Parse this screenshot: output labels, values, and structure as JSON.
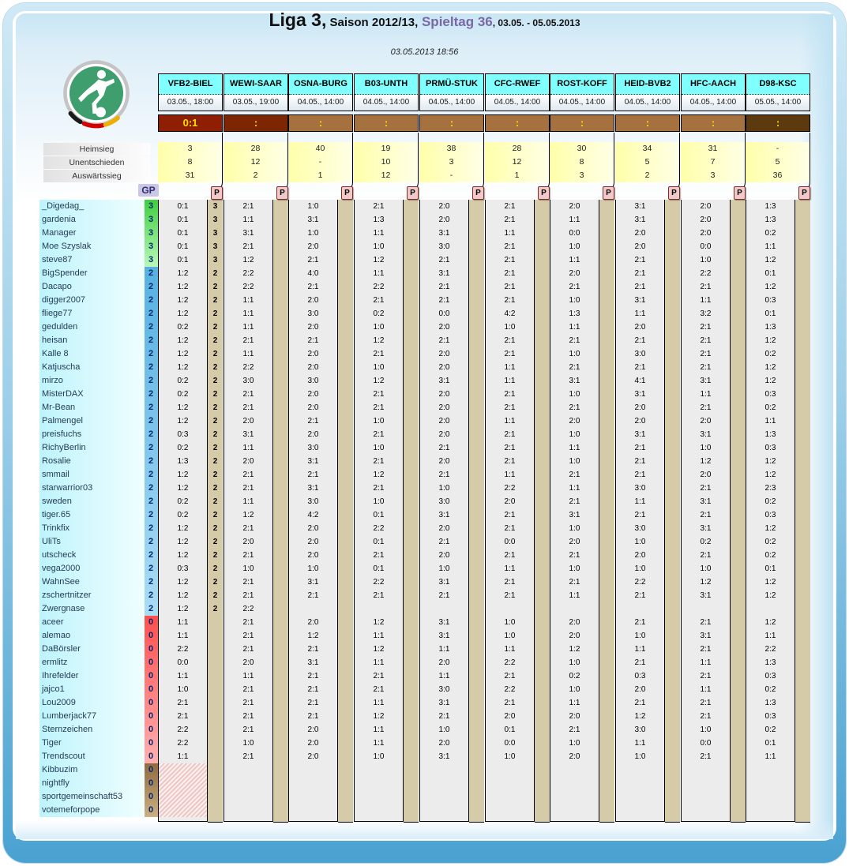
{
  "title": {
    "league": "Liga 3,",
    "season": " Saison 2012/13,",
    "matchday": " Spieltag 36",
    "dates": ", 03.05. - 05.05.2013"
  },
  "timestamp": "03.05.2013 18:56",
  "stats_labels": [
    "Heimsieg",
    "Unentschieden",
    "Auswärtssieg"
  ],
  "gp_label": "GP",
  "p_label": "P",
  "colors": {
    "header_bg": "#80ffff",
    "result_open": "#a5713f",
    "result_played": "#8e1f04",
    "result_imminent": "#7d2604",
    "result_late": "#5d3a0e",
    "stats_bg": "#ffffaa",
    "points_strip": "#d6cba9",
    "name_col_bg": "#bef4fc",
    "gp_green": "#3ecf3e",
    "gp_blue": "#55b1e2",
    "gp_red": "#ff4f4f",
    "gp_brown": "#8f6a40",
    "accent_purple": "#7a68a6",
    "frame_blue": "#4aa2d2",
    "result_text": "#ffdf00",
    "p_tab_bg": "#f2c9c9"
  },
  "matches": [
    {
      "teams": "VFB2-BIEL",
      "kickoff": "03.05., 18:00",
      "result": "0:1",
      "status": "played",
      "stats": [
        "3",
        "8",
        "31"
      ]
    },
    {
      "teams": "WEWI-SAAR",
      "kickoff": "03.05., 19:00",
      "result": ":",
      "status": "imminent",
      "stats": [
        "28",
        "12",
        "2"
      ]
    },
    {
      "teams": "OSNA-BURG",
      "kickoff": "04.05., 14:00",
      "result": ":",
      "status": "open",
      "stats": [
        "40",
        "-",
        "1"
      ]
    },
    {
      "teams": "B03-UNTH",
      "kickoff": "04.05., 14:00",
      "result": ":",
      "status": "open",
      "stats": [
        "19",
        "10",
        "12"
      ]
    },
    {
      "teams": "PRMÜ-STUK",
      "kickoff": "04.05., 14:00",
      "result": ":",
      "status": "open",
      "stats": [
        "38",
        "3",
        "-"
      ]
    },
    {
      "teams": "CFC-RWEF",
      "kickoff": "04.05., 14:00",
      "result": ":",
      "status": "open",
      "stats": [
        "28",
        "12",
        "1"
      ]
    },
    {
      "teams": "ROST-KOFF",
      "kickoff": "04.05., 14:00",
      "result": ":",
      "status": "open",
      "stats": [
        "30",
        "8",
        "3"
      ]
    },
    {
      "teams": "HEID-BVB2",
      "kickoff": "04.05., 14:00",
      "result": ":",
      "status": "open",
      "stats": [
        "34",
        "5",
        "2"
      ]
    },
    {
      "teams": "HFC-AACH",
      "kickoff": "04.05., 14:00",
      "result": ":",
      "status": "open",
      "stats": [
        "31",
        "7",
        "3"
      ]
    },
    {
      "teams": "D98-KSC",
      "kickoff": "05.05., 14:00",
      "result": ":",
      "status": "late",
      "stats": [
        "-",
        "5",
        "36"
      ]
    }
  ],
  "players": [
    {
      "name": "_Digedag_",
      "gp": "3",
      "group": "green",
      "p1": "3",
      "preds": [
        "0:1",
        "2:1",
        "1:0",
        "2:1",
        "2:0",
        "2:1",
        "2:0",
        "3:1",
        "2:0",
        "1:3"
      ]
    },
    {
      "name": "gardenia",
      "gp": "3",
      "group": "green",
      "p1": "3",
      "preds": [
        "0:1",
        "1:1",
        "3:1",
        "1:3",
        "2:0",
        "2:1",
        "1:1",
        "3:1",
        "2:0",
        "1:3"
      ]
    },
    {
      "name": "Manager",
      "gp": "3",
      "group": "green",
      "p1": "3",
      "preds": [
        "0:1",
        "3:1",
        "1:0",
        "1:1",
        "3:1",
        "1:1",
        "0:0",
        "2:0",
        "2:0",
        "0:2"
      ]
    },
    {
      "name": "Moe Szyslak",
      "gp": "3",
      "group": "green",
      "p1": "3",
      "preds": [
        "0:1",
        "2:1",
        "2:0",
        "1:0",
        "3:0",
        "2:1",
        "1:0",
        "2:0",
        "0:0",
        "1:1"
      ]
    },
    {
      "name": "steve87",
      "gp": "3",
      "group": "green",
      "p1": "3",
      "preds": [
        "0:1",
        "1:2",
        "2:1",
        "1:2",
        "2:1",
        "2:1",
        "1:1",
        "2:1",
        "1:0",
        "1:2"
      ]
    },
    {
      "name": "BigSpender",
      "gp": "2",
      "group": "blue",
      "p1": "2",
      "preds": [
        "1:2",
        "2:2",
        "4:0",
        "1:1",
        "3:1",
        "2:1",
        "2:0",
        "2:1",
        "2:2",
        "0:1"
      ]
    },
    {
      "name": "Dacapo",
      "gp": "2",
      "group": "blue",
      "p1": "2",
      "preds": [
        "1:2",
        "2:2",
        "2:1",
        "2:2",
        "2:1",
        "2:1",
        "2:1",
        "2:1",
        "2:1",
        "1:2"
      ]
    },
    {
      "name": "digger2007",
      "gp": "2",
      "group": "blue",
      "p1": "2",
      "preds": [
        "1:2",
        "1:1",
        "2:0",
        "2:1",
        "2:1",
        "2:1",
        "1:0",
        "3:1",
        "1:1",
        "0:3"
      ]
    },
    {
      "name": "fliege77",
      "gp": "2",
      "group": "blue",
      "p1": "2",
      "preds": [
        "1:2",
        "1:1",
        "3:0",
        "0:2",
        "0:0",
        "4:2",
        "1:3",
        "1:1",
        "3:2",
        "0:1"
      ]
    },
    {
      "name": "gedulden",
      "gp": "2",
      "group": "blue",
      "p1": "2",
      "preds": [
        "0:2",
        "1:1",
        "2:0",
        "1:0",
        "2:0",
        "1:0",
        "1:1",
        "2:0",
        "2:1",
        "1:3"
      ]
    },
    {
      "name": "heisan",
      "gp": "2",
      "group": "blue",
      "p1": "2",
      "preds": [
        "1:2",
        "2:1",
        "2:1",
        "1:2",
        "2:1",
        "2:1",
        "2:1",
        "2:1",
        "2:1",
        "1:2"
      ]
    },
    {
      "name": "Kalle 8",
      "gp": "2",
      "group": "blue",
      "p1": "2",
      "preds": [
        "1:2",
        "1:1",
        "2:0",
        "2:1",
        "2:0",
        "2:1",
        "1:0",
        "3:0",
        "2:1",
        "0:2"
      ]
    },
    {
      "name": "Katjuscha",
      "gp": "2",
      "group": "blue",
      "p1": "2",
      "preds": [
        "1:2",
        "2:2",
        "2:0",
        "1:0",
        "2:0",
        "1:1",
        "2:1",
        "2:1",
        "2:1",
        "1:2"
      ]
    },
    {
      "name": "mirzo",
      "gp": "2",
      "group": "blue",
      "p1": "2",
      "preds": [
        "0:2",
        "3:0",
        "3:0",
        "1:2",
        "3:1",
        "1:1",
        "3:1",
        "4:1",
        "3:1",
        "1:2"
      ]
    },
    {
      "name": "MisterDAX",
      "gp": "2",
      "group": "blue",
      "p1": "2",
      "preds": [
        "0:2",
        "2:1",
        "2:0",
        "2:1",
        "2:0",
        "2:1",
        "1:0",
        "3:1",
        "1:1",
        "0:3"
      ]
    },
    {
      "name": "Mr-Bean",
      "gp": "2",
      "group": "blue",
      "p1": "2",
      "preds": [
        "1:2",
        "2:1",
        "2:0",
        "2:1",
        "2:0",
        "2:1",
        "2:1",
        "2:0",
        "2:1",
        "0:2"
      ]
    },
    {
      "name": "Palmengel",
      "gp": "2",
      "group": "blue",
      "p1": "2",
      "preds": [
        "1:2",
        "2:0",
        "2:1",
        "1:0",
        "2:0",
        "1:1",
        "2:0",
        "2:0",
        "2:0",
        "1:1"
      ]
    },
    {
      "name": "preisfuchs",
      "gp": "2",
      "group": "blue",
      "p1": "2",
      "preds": [
        "0:3",
        "3:1",
        "2:0",
        "2:1",
        "2:0",
        "2:1",
        "1:0",
        "3:1",
        "3:1",
        "1:3"
      ]
    },
    {
      "name": "RichyBerlin",
      "gp": "2",
      "group": "blue",
      "p1": "2",
      "preds": [
        "0:2",
        "1:1",
        "3:0",
        "1:0",
        "2:1",
        "2:1",
        "1:1",
        "2:1",
        "1:0",
        "0:3"
      ]
    },
    {
      "name": "Rosalie",
      "gp": "2",
      "group": "blue",
      "p1": "2",
      "preds": [
        "1:3",
        "2:0",
        "3:1",
        "2:1",
        "2:0",
        "2:1",
        "1:0",
        "2:1",
        "1:2",
        "1:2"
      ]
    },
    {
      "name": "smmail",
      "gp": "2",
      "group": "blue",
      "p1": "2",
      "preds": [
        "1:2",
        "2:1",
        "2:1",
        "1:2",
        "2:1",
        "1:1",
        "2:1",
        "2:1",
        "2:0",
        "1:2"
      ]
    },
    {
      "name": "starwarrior03",
      "gp": "2",
      "group": "blue",
      "p1": "2",
      "preds": [
        "1:2",
        "2:1",
        "3:1",
        "2:1",
        "1:0",
        "2:2",
        "1:1",
        "3:0",
        "2:1",
        "2:3"
      ]
    },
    {
      "name": "sweden",
      "gp": "2",
      "group": "blue",
      "p1": "2",
      "preds": [
        "0:2",
        "1:1",
        "3:0",
        "1:0",
        "3:0",
        "2:0",
        "2:1",
        "1:1",
        "3:1",
        "0:2"
      ]
    },
    {
      "name": "tiger.65",
      "gp": "2",
      "group": "blue",
      "p1": "2",
      "preds": [
        "0:2",
        "1:2",
        "4:2",
        "0:1",
        "3:1",
        "2:1",
        "3:1",
        "2:1",
        "2:1",
        "0:3"
      ]
    },
    {
      "name": "Trinkfix",
      "gp": "2",
      "group": "blue",
      "p1": "2",
      "preds": [
        "1:2",
        "2:1",
        "2:0",
        "2:2",
        "2:0",
        "2:1",
        "1:0",
        "3:0",
        "3:1",
        "1:2"
      ]
    },
    {
      "name": "UliTs",
      "gp": "2",
      "group": "blue",
      "p1": "2",
      "preds": [
        "1:2",
        "2:0",
        "2:0",
        "0:1",
        "2:1",
        "0:0",
        "2:0",
        "1:0",
        "0:2",
        "0:2"
      ]
    },
    {
      "name": "utscheck",
      "gp": "2",
      "group": "blue",
      "p1": "2",
      "preds": [
        "1:2",
        "2:1",
        "2:0",
        "2:1",
        "2:0",
        "2:1",
        "2:1",
        "2:0",
        "2:1",
        "0:2"
      ]
    },
    {
      "name": "vega2000",
      "gp": "2",
      "group": "blue",
      "p1": "2",
      "preds": [
        "0:3",
        "1:0",
        "1:0",
        "0:1",
        "1:0",
        "1:1",
        "1:0",
        "1:0",
        "1:0",
        "0:1"
      ]
    },
    {
      "name": "WahnSee",
      "gp": "2",
      "group": "blue",
      "p1": "2",
      "preds": [
        "1:2",
        "2:1",
        "3:1",
        "2:2",
        "3:1",
        "2:1",
        "2:1",
        "2:2",
        "1:2",
        "1:2"
      ]
    },
    {
      "name": "zschertnitzer",
      "gp": "2",
      "group": "blue",
      "p1": "2",
      "preds": [
        "1:2",
        "2:1",
        "2:1",
        "2:1",
        "2:1",
        "2:1",
        "1:1",
        "2:1",
        "3:1",
        "1:2"
      ]
    },
    {
      "name": "Zwergnase",
      "gp": "2",
      "group": "blue",
      "p1": "2",
      "preds": [
        "1:2",
        "2:2",
        "",
        "",
        "",
        "",
        "",
        "",
        "",
        ""
      ]
    },
    {
      "name": "aceer",
      "gp": "0",
      "group": "red",
      "p1": "",
      "preds": [
        "1:1",
        "2:1",
        "2:0",
        "1:2",
        "3:1",
        "1:0",
        "2:0",
        "2:1",
        "2:1",
        "1:2"
      ]
    },
    {
      "name": "alemao",
      "gp": "0",
      "group": "red",
      "p1": "",
      "preds": [
        "1:1",
        "2:1",
        "1:2",
        "1:1",
        "3:1",
        "1:0",
        "2:0",
        "1:0",
        "3:1",
        "1:1"
      ]
    },
    {
      "name": "DaBörsler",
      "gp": "0",
      "group": "red",
      "p1": "",
      "preds": [
        "2:2",
        "2:1",
        "2:1",
        "1:2",
        "1:1",
        "1:1",
        "1:2",
        "1:1",
        "2:1",
        "2:2"
      ]
    },
    {
      "name": "ermlitz",
      "gp": "0",
      "group": "red",
      "p1": "",
      "preds": [
        "0:0",
        "2:0",
        "3:1",
        "1:1",
        "2:0",
        "2:2",
        "1:0",
        "2:1",
        "1:1",
        "1:3"
      ]
    },
    {
      "name": "Ihrefelder",
      "gp": "0",
      "group": "red",
      "p1": "",
      "preds": [
        "1:1",
        "1:1",
        "2:1",
        "2:1",
        "1:1",
        "2:1",
        "0:2",
        "0:3",
        "2:1",
        "0:3"
      ]
    },
    {
      "name": "jajco1",
      "gp": "0",
      "group": "red",
      "p1": "",
      "preds": [
        "1:0",
        "2:1",
        "2:1",
        "2:1",
        "3:0",
        "2:2",
        "1:0",
        "2:0",
        "1:1",
        "0:2"
      ]
    },
    {
      "name": "Lou2009",
      "gp": "0",
      "group": "red",
      "p1": "",
      "preds": [
        "2:1",
        "2:1",
        "2:1",
        "1:1",
        "3:1",
        "2:1",
        "1:1",
        "2:1",
        "2:1",
        "1:3"
      ]
    },
    {
      "name": "Lumberjack77",
      "gp": "0",
      "group": "red",
      "p1": "",
      "preds": [
        "2:1",
        "2:1",
        "2:1",
        "1:2",
        "2:1",
        "2:0",
        "2:0",
        "1:2",
        "2:1",
        "0:3"
      ]
    },
    {
      "name": "Sternzeichen",
      "gp": "0",
      "group": "red",
      "p1": "",
      "preds": [
        "2:2",
        "2:1",
        "2:0",
        "1:1",
        "1:0",
        "0:1",
        "2:1",
        "3:0",
        "1:0",
        "0:2"
      ]
    },
    {
      "name": "Tiger",
      "gp": "0",
      "group": "red",
      "p1": "",
      "preds": [
        "2:2",
        "1:0",
        "2:0",
        "1:1",
        "2:0",
        "0:0",
        "1:0",
        "1:1",
        "0:0",
        "0:1"
      ]
    },
    {
      "name": "Trendscout",
      "gp": "0",
      "group": "red",
      "p1": "",
      "preds": [
        "1:1",
        "2:1",
        "2:0",
        "1:0",
        "3:1",
        "1:0",
        "2:0",
        "1:0",
        "2:1",
        "1:1"
      ]
    },
    {
      "name": "Kibbuzim",
      "gp": "0",
      "group": "brown",
      "p1": "",
      "no_tip": true,
      "preds": [
        "",
        "",
        "",
        "",
        "",
        "",
        "",
        "",
        "",
        ""
      ]
    },
    {
      "name": "nightfly",
      "gp": "0",
      "group": "brown",
      "p1": "",
      "no_tip": true,
      "preds": [
        "",
        "",
        "",
        "",
        "",
        "",
        "",
        "",
        "",
        ""
      ]
    },
    {
      "name": "sportgemeinschaft53",
      "gp": "0",
      "group": "brown",
      "p1": "",
      "no_tip": true,
      "preds": [
        "",
        "",
        "",
        "",
        "",
        "",
        "",
        "",
        "",
        ""
      ]
    },
    {
      "name": "votemeforpope",
      "gp": "0",
      "group": "brown",
      "p1": "",
      "no_tip": true,
      "preds": [
        "",
        "",
        "",
        "",
        "",
        "",
        "",
        "",
        "",
        ""
      ]
    }
  ]
}
